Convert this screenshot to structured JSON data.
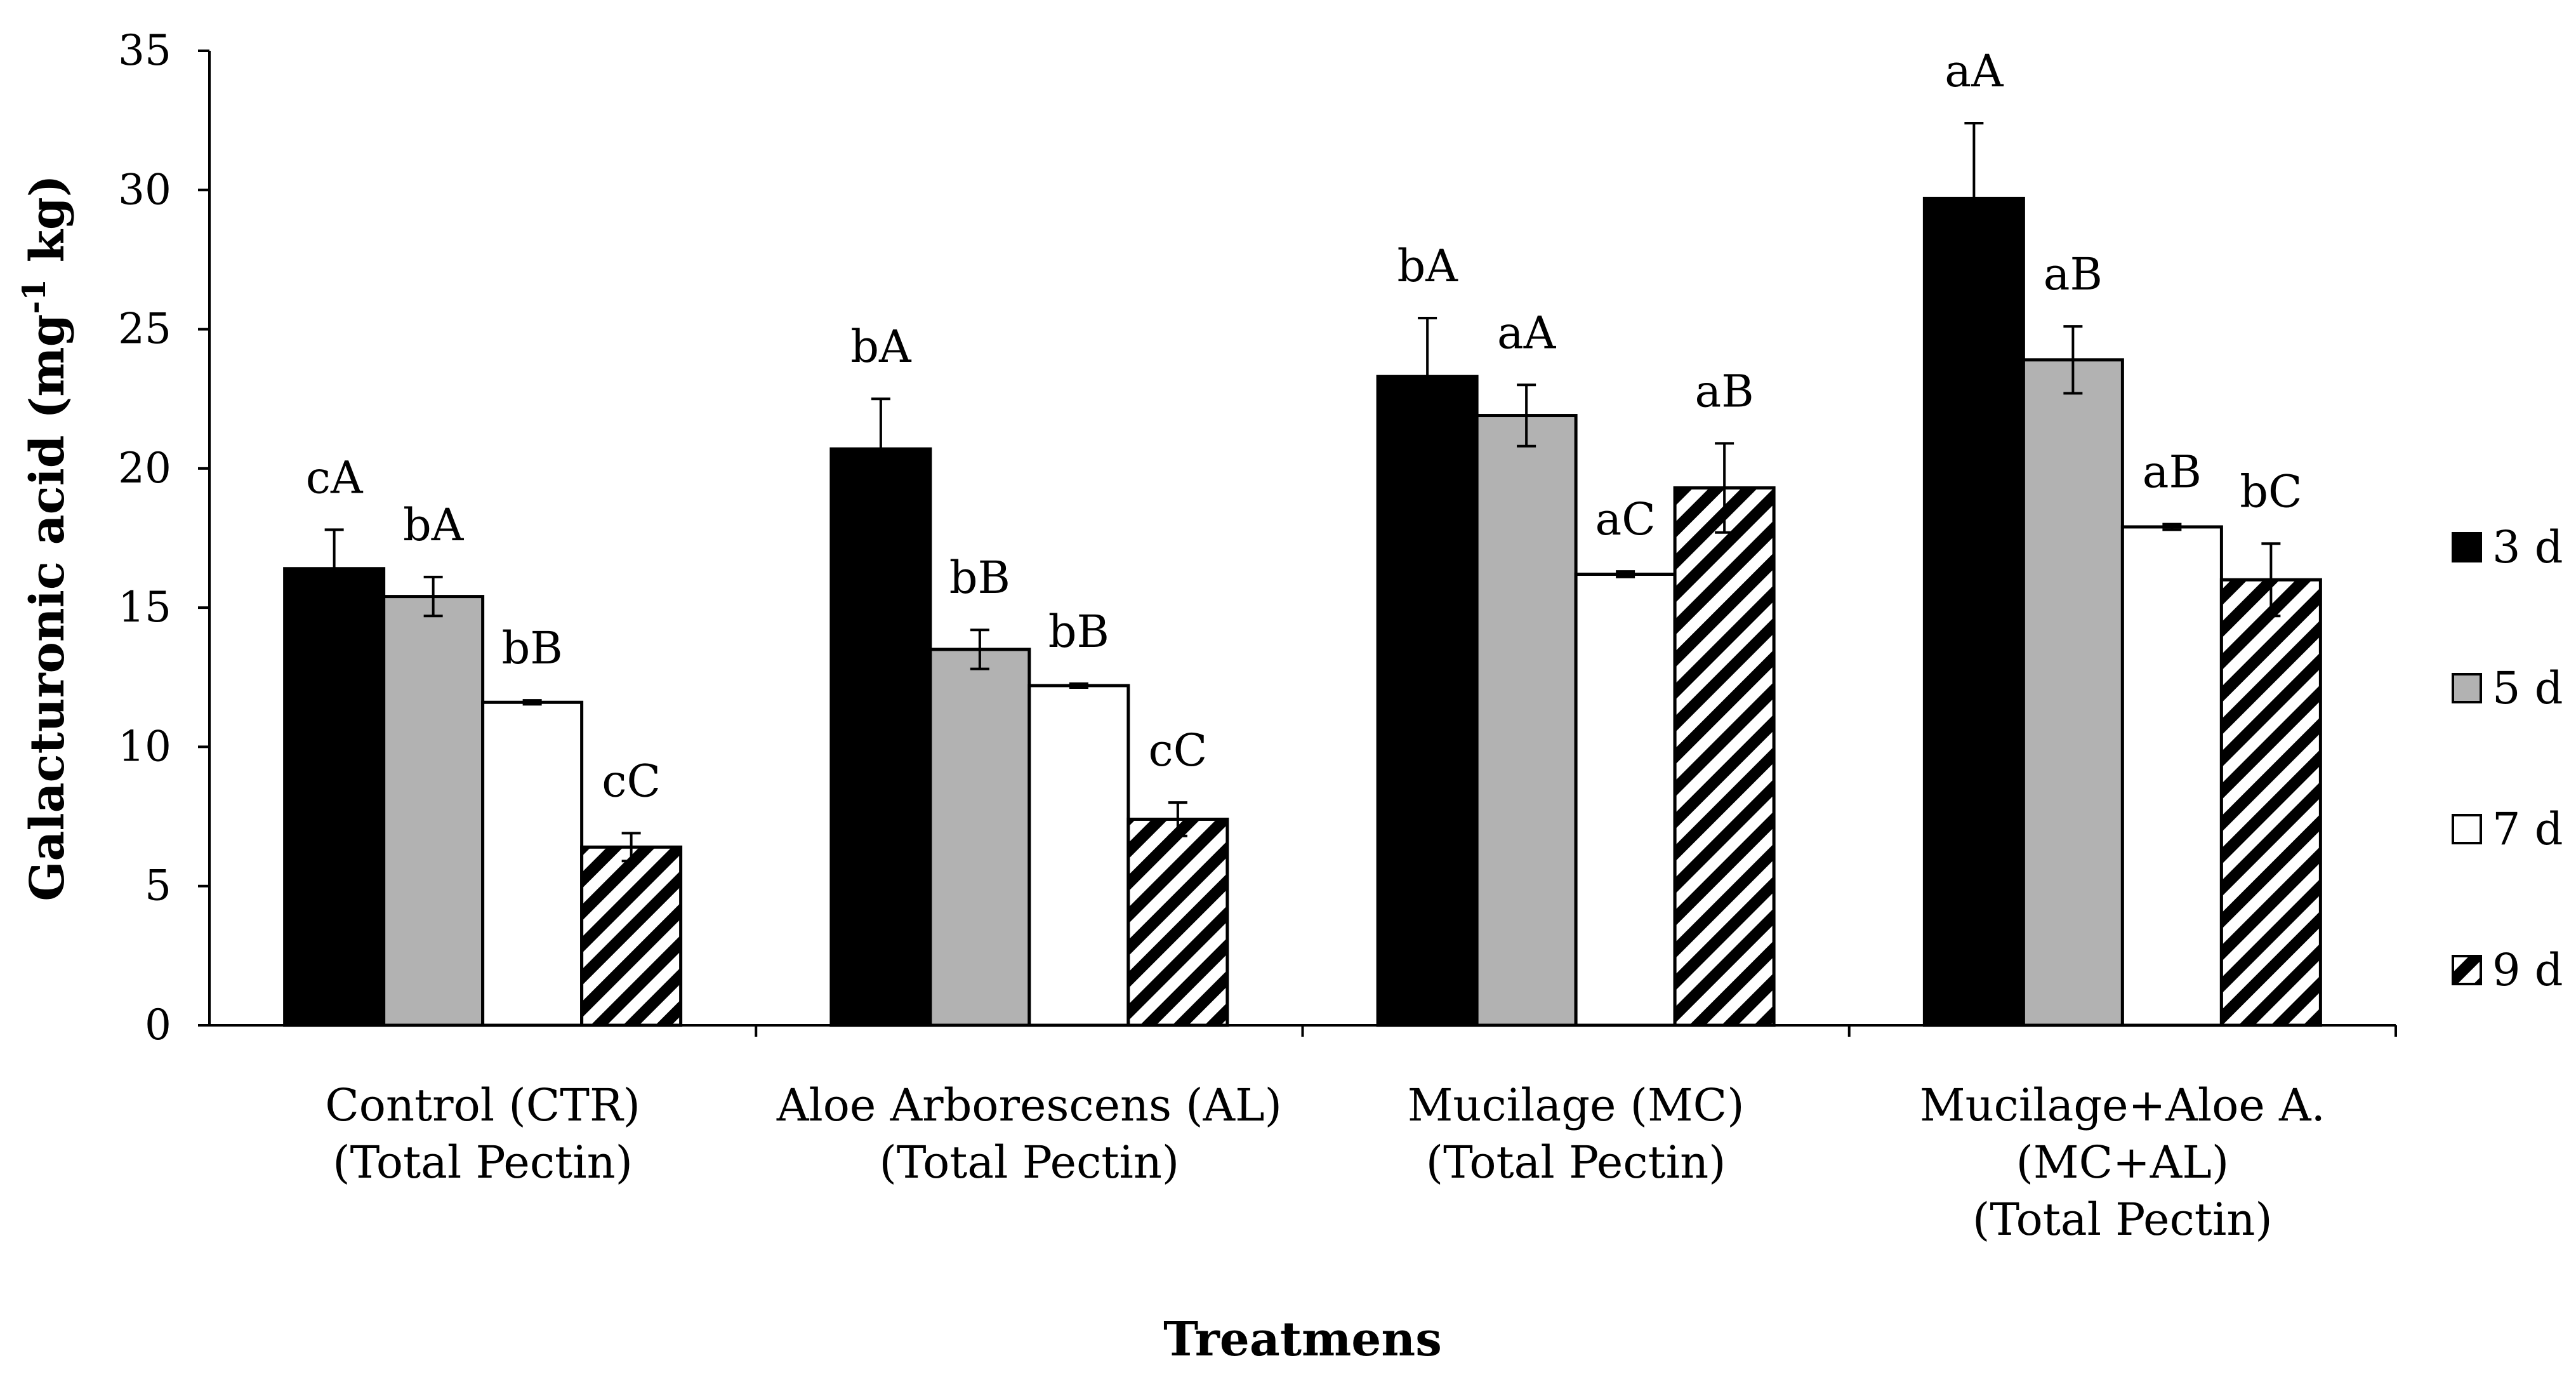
{
  "chart_data": {
    "type": "bar",
    "title": "",
    "xlabel": "Treatmens",
    "ylabel": "Galacturonic acid (mg",
    "ylabel_sup": "-1",
    "ylabel_tail": " kg)",
    "ylim": [
      0,
      35
    ],
    "yticks": [
      0,
      5,
      10,
      15,
      20,
      25,
      30,
      35
    ],
    "categories": [
      [
        "Control (CTR)",
        "(Total Pectin)"
      ],
      [
        "Aloe Arborescens (AL)",
        "(Total Pectin)"
      ],
      [
        "Mucilage (MC)",
        "(Total Pectin)"
      ],
      [
        "Mucilage+Aloe A.",
        "(MC+AL)",
        "(Total Pectin)"
      ]
    ],
    "series": [
      {
        "name": "3 d",
        "fill": "#000000",
        "values": [
          16.4,
          20.7,
          23.3,
          29.7
        ],
        "errors": [
          1.4,
          1.8,
          2.1,
          2.7
        ],
        "labels": [
          "cA",
          "bA",
          "bA",
          "aA"
        ]
      },
      {
        "name": "5 d",
        "fill": "#b2b2b2",
        "values": [
          15.4,
          13.5,
          21.9,
          23.9
        ],
        "errors": [
          0.7,
          0.7,
          1.1,
          1.2
        ],
        "labels": [
          "bA",
          "bB",
          "aA",
          "aB"
        ]
      },
      {
        "name": "7 d",
        "fill": "#ffffff",
        "values": [
          11.6,
          12.2,
          16.2,
          17.9
        ],
        "errors": [
          0.07,
          0.07,
          0.1,
          0.1
        ],
        "labels": [
          "bB",
          "bB",
          "aC",
          "aB"
        ]
      },
      {
        "name": "9 d",
        "fill": "hatch",
        "values": [
          6.4,
          7.4,
          19.3,
          16.0
        ],
        "errors": [
          0.5,
          0.6,
          1.6,
          1.3
        ],
        "labels": [
          "cC",
          "cC",
          "aB",
          "bC"
        ]
      }
    ],
    "legend_position": "right",
    "grid": false
  }
}
